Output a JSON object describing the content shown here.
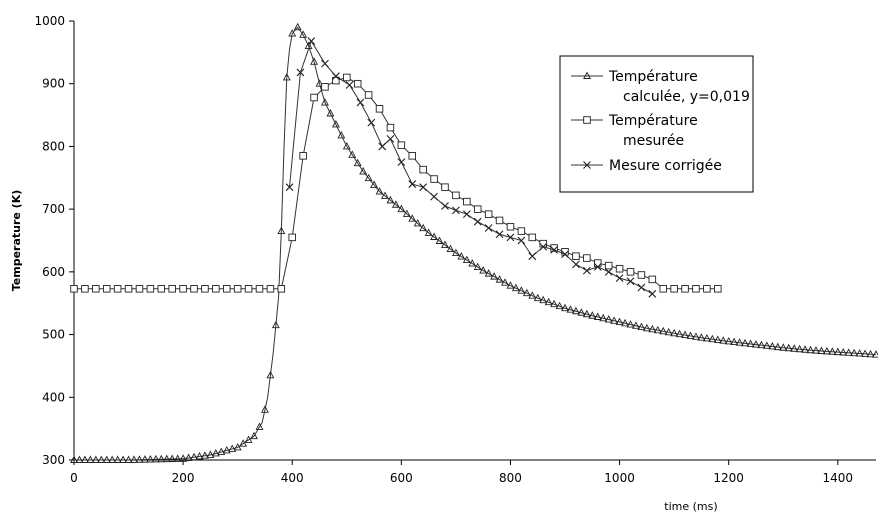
{
  "chart_data": {
    "type": "line",
    "title": "",
    "xlabel": "time (ms)",
    "ylabel": "Temperature (K)",
    "xlim": [
      0,
      1470
    ],
    "ylim": [
      300,
      1000
    ],
    "xticks": [
      0,
      200,
      400,
      600,
      800,
      1000,
      1200,
      1400
    ],
    "yticks": [
      300,
      400,
      500,
      600,
      700,
      800,
      900,
      1000
    ],
    "grid": false,
    "legend_position": "top-right",
    "series": [
      {
        "name": "Température calculée, y=0,019",
        "legend_lines": [
          "Température",
          "calculée, y=0,019"
        ],
        "marker": "triangle",
        "x": [
          0,
          100,
          200,
          250,
          300,
          330,
          345,
          355,
          365,
          375,
          380,
          385,
          390,
          395,
          400,
          410,
          420,
          430,
          440,
          450,
          460,
          480,
          500,
          530,
          560,
          600,
          650,
          700,
          750,
          800,
          850,
          900,
          950,
          1000,
          1050,
          1100,
          1150,
          1200,
          1250,
          1300,
          1350,
          1400,
          1470
        ],
        "y": [
          300,
          300,
          302,
          308,
          320,
          338,
          360,
          400,
          470,
          560,
          665,
          800,
          910,
          955,
          980,
          990,
          978,
          960,
          935,
          900,
          870,
          835,
          800,
          760,
          728,
          700,
          662,
          630,
          602,
          578,
          558,
          542,
          530,
          520,
          510,
          502,
          495,
          489,
          484,
          479,
          475,
          472,
          468
        ]
      },
      {
        "name": "Température mesurée",
        "legend_lines": [
          "Température",
          "mesurée"
        ],
        "marker": "square",
        "x": [
          0,
          100,
          200,
          300,
          370,
          380,
          400,
          420,
          440,
          460,
          480,
          500,
          520,
          540,
          560,
          580,
          600,
          620,
          640,
          660,
          680,
          700,
          720,
          740,
          760,
          780,
          800,
          820,
          840,
          860,
          880,
          900,
          920,
          940,
          960,
          980,
          1000,
          1020,
          1040,
          1060,
          1080,
          1100,
          1120,
          1140,
          1160,
          1180
        ],
        "y": [
          573,
          573,
          573,
          573,
          573,
          573,
          655,
          785,
          878,
          895,
          905,
          910,
          900,
          882,
          860,
          830,
          802,
          785,
          763,
          748,
          735,
          722,
          712,
          700,
          692,
          682,
          672,
          665,
          655,
          645,
          638,
          632,
          625,
          622,
          614,
          610,
          605,
          600,
          595,
          588,
          573,
          573,
          573,
          573,
          573,
          573
        ]
      },
      {
        "name": "Mesure corrigée",
        "legend_lines": [
          "Mesure corrigée"
        ],
        "marker": "x",
        "x": [
          395,
          415,
          435,
          460,
          480,
          505,
          525,
          545,
          565,
          580,
          600,
          620,
          640,
          660,
          680,
          700,
          720,
          740,
          760,
          780,
          800,
          820,
          840,
          860,
          880,
          900,
          920,
          940,
          960,
          980,
          1000,
          1020,
          1040,
          1060
        ],
        "y": [
          735,
          918,
          968,
          932,
          912,
          898,
          870,
          838,
          800,
          812,
          775,
          740,
          735,
          720,
          705,
          698,
          692,
          680,
          670,
          660,
          655,
          650,
          625,
          640,
          635,
          628,
          612,
          602,
          608,
          600,
          590,
          585,
          575,
          565
        ]
      }
    ]
  }
}
